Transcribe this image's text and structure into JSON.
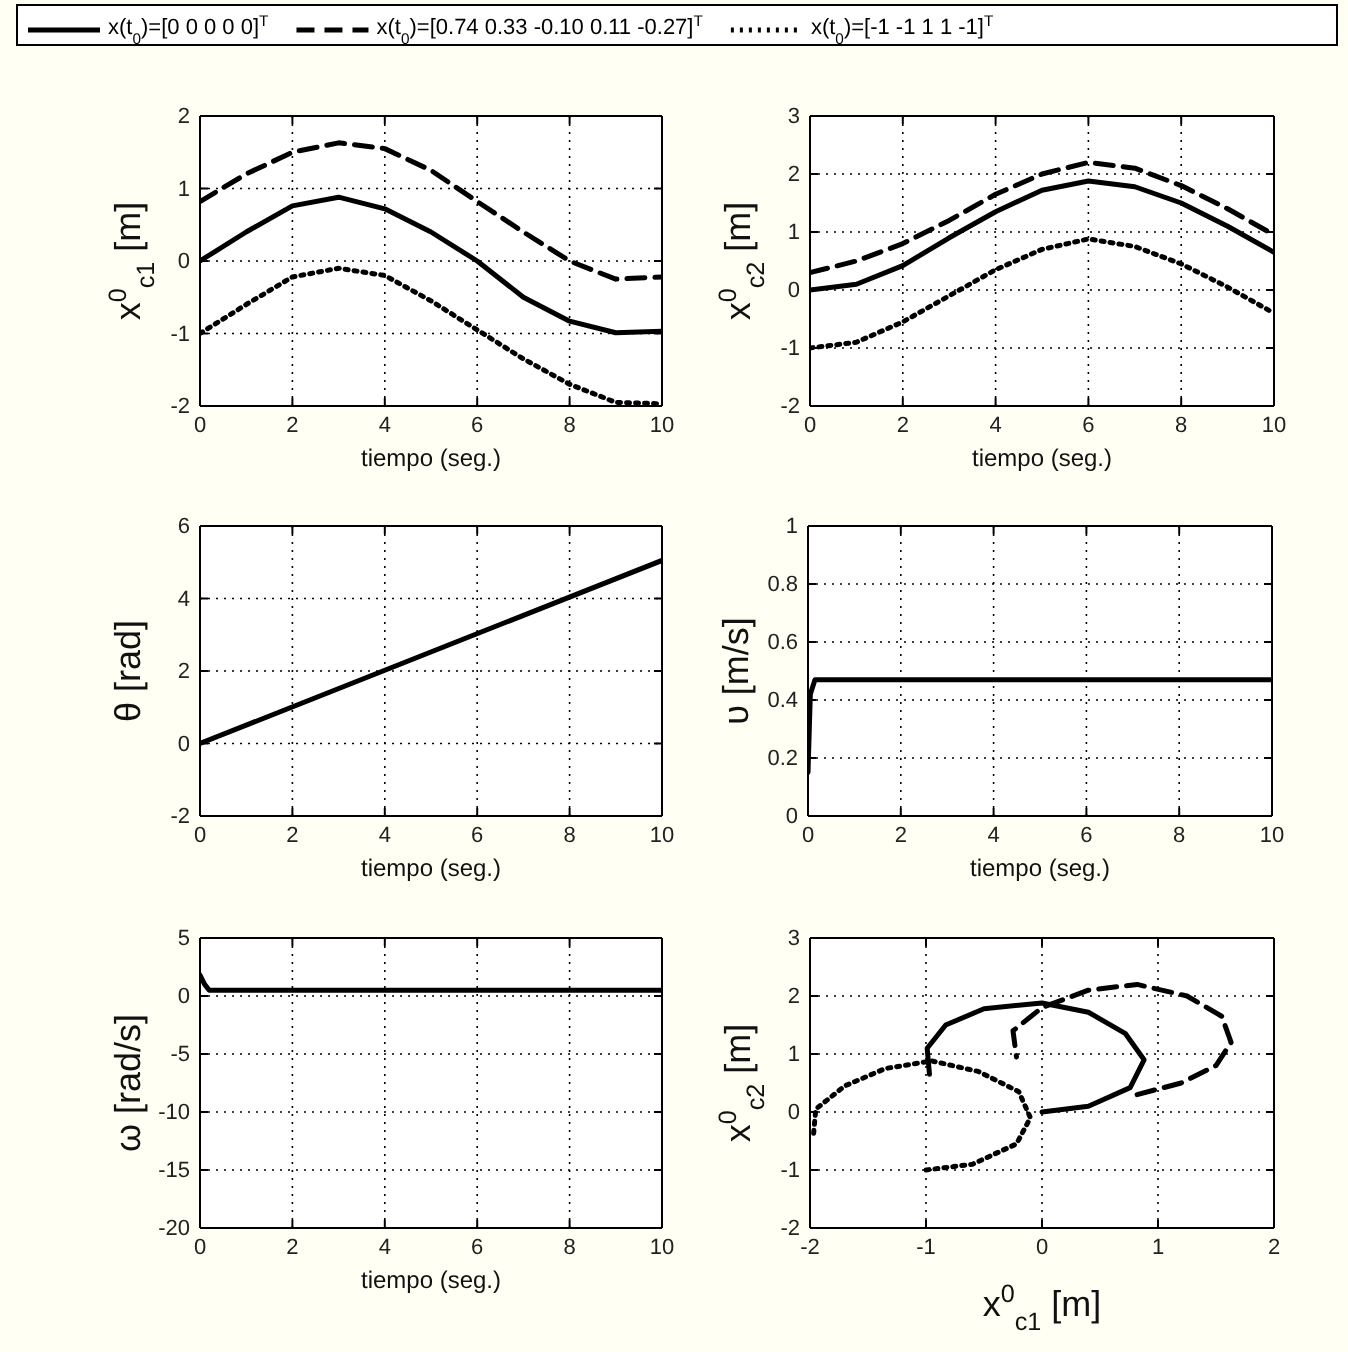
{
  "chart_data": [
    {
      "type": "line",
      "xlabel": "tiempo  (seg.)",
      "ylabel": "x$^{0}$$_{c1}$  [m]",
      "xlim": [
        0,
        10
      ],
      "ylim": [
        -2,
        2
      ],
      "xticks": [
        0,
        2,
        4,
        6,
        8,
        10
      ],
      "yticks": [
        -2,
        -1,
        0,
        1,
        2
      ],
      "grid": true,
      "legend": "top",
      "x": [
        0,
        1,
        2,
        3,
        4,
        5,
        6,
        7,
        8,
        9,
        10
      ],
      "series": [
        {
          "name": "x(t$_{0}$)=[0  0  0  0  0]$^{T}$",
          "color": "#000000",
          "line_style": "solid",
          "values": [
            0,
            0.4,
            0.76,
            0.88,
            0.72,
            0.4,
            0,
            -0.5,
            -0.83,
            -0.99,
            -0.97
          ]
        },
        {
          "name": "x(t$_{0}$)=[0.74  0.33  -0.10  0.11  -0.27]$^{T}$",
          "color": "#000000",
          "line_style": "dashed",
          "values": [
            0.82,
            1.2,
            1.5,
            1.63,
            1.55,
            1.25,
            0.82,
            0.4,
            0,
            -0.25,
            -0.22
          ]
        },
        {
          "name": "x(t$_{0}$)=[-1  -1  1  1  -1]$^{T}$",
          "color": "#000000",
          "line_style": "dotted",
          "values": [
            -1,
            -0.6,
            -0.22,
            -0.1,
            -0.2,
            -0.55,
            -0.95,
            -1.35,
            -1.7,
            -1.95,
            -1.97
          ]
        }
      ]
    },
    {
      "type": "line",
      "xlabel": "tiempo  (seg.)",
      "ylabel": "x$^{0}$$_{c2}$  [m]",
      "xlim": [
        0,
        10
      ],
      "ylim": [
        -2,
        3
      ],
      "xticks": [
        0,
        2,
        4,
        6,
        8,
        10
      ],
      "yticks": [
        -2,
        -1,
        0,
        1,
        2,
        3
      ],
      "grid": true,
      "x": [
        0,
        1,
        2,
        3,
        4,
        5,
        6,
        7,
        8,
        9,
        10
      ],
      "series": [
        {
          "color": "#000000",
          "line_style": "solid",
          "values": [
            0,
            0.1,
            0.42,
            0.9,
            1.35,
            1.72,
            1.88,
            1.78,
            1.5,
            1.1,
            0.65
          ]
        },
        {
          "color": "#000000",
          "line_style": "dashed",
          "values": [
            0.3,
            0.5,
            0.8,
            1.2,
            1.65,
            2,
            2.2,
            2.1,
            1.8,
            1.4,
            0.95
          ]
        },
        {
          "color": "#000000",
          "line_style": "dotted",
          "values": [
            -1,
            -0.9,
            -0.55,
            -0.1,
            0.35,
            0.7,
            0.88,
            0.75,
            0.45,
            0.05,
            -0.4
          ]
        }
      ]
    },
    {
      "type": "line",
      "xlabel": "tiempo  (seg.)",
      "ylabel": "θ  [rad]",
      "xlim": [
        0,
        10
      ],
      "ylim": [
        -2,
        6
      ],
      "xticks": [
        0,
        2,
        4,
        6,
        8,
        10
      ],
      "yticks": [
        -2,
        0,
        2,
        4,
        6
      ],
      "grid": true,
      "x": [
        0,
        10
      ],
      "series": [
        {
          "color": "#000000",
          "line_style": "solid",
          "values": [
            0,
            5.05
          ]
        }
      ]
    },
    {
      "type": "line",
      "xlabel": "tiempo  (seg.)",
      "ylabel": "υ  [m/s]",
      "xlim": [
        0,
        10
      ],
      "ylim": [
        0,
        1
      ],
      "xticks": [
        0,
        2,
        4,
        6,
        8,
        10
      ],
      "yticks": [
        0,
        0.2,
        0.4,
        0.6,
        0.8,
        1
      ],
      "grid": true,
      "x": [
        0,
        0.05,
        0.15,
        10
      ],
      "series": [
        {
          "color": "#000000",
          "line_style": "solid",
          "values": [
            0.15,
            0.42,
            0.47,
            0.47
          ]
        }
      ]
    },
    {
      "type": "line",
      "xlabel": "tiempo  (seg.)",
      "ylabel": "ω  [rad/s]",
      "xlim": [
        0,
        10
      ],
      "ylim": [
        -20,
        5
      ],
      "xticks": [
        0,
        2,
        4,
        6,
        8,
        10
      ],
      "yticks": [
        -20,
        -15,
        -10,
        -5,
        0,
        5
      ],
      "grid": true,
      "x": [
        0,
        0.1,
        0.2,
        10
      ],
      "series": [
        {
          "color": "#000000",
          "line_style": "solid",
          "values": [
            1.8,
            1,
            0.5,
            0.5
          ]
        }
      ]
    },
    {
      "type": "line",
      "xlabel": "x$^{0}$$_{c1}$  [m]",
      "ylabel": "x$^{0}$$_{c2}$  [m]",
      "xlim": [
        -2,
        2
      ],
      "ylim": [
        -2,
        3
      ],
      "xticks": [
        -2,
        -1,
        0,
        1,
        2
      ],
      "yticks": [
        -2,
        -1,
        0,
        1,
        2,
        3
      ],
      "grid": true,
      "series": [
        {
          "color": "#000000",
          "line_style": "solid",
          "x": [
            0,
            0.4,
            0.76,
            0.88,
            0.72,
            0.4,
            0,
            -0.5,
            -0.83,
            -0.99,
            -0.97
          ],
          "values": [
            0,
            0.1,
            0.42,
            0.9,
            1.35,
            1.72,
            1.88,
            1.78,
            1.5,
            1.1,
            0.65
          ]
        },
        {
          "color": "#000000",
          "line_style": "dashed",
          "x": [
            0.82,
            1.2,
            1.5,
            1.63,
            1.55,
            1.25,
            0.82,
            0.4,
            0,
            -0.25,
            -0.22
          ],
          "values": [
            0.3,
            0.5,
            0.8,
            1.2,
            1.65,
            2,
            2.2,
            2.1,
            1.8,
            1.4,
            0.95
          ]
        },
        {
          "color": "#000000",
          "line_style": "dotted",
          "x": [
            -1,
            -0.6,
            -0.22,
            -0.1,
            -0.2,
            -0.55,
            -0.95,
            -1.35,
            -1.7,
            -1.95,
            -1.97
          ],
          "values": [
            -1,
            -0.9,
            -0.55,
            -0.1,
            0.35,
            0.7,
            0.88,
            0.75,
            0.45,
            0.05,
            -0.4
          ]
        }
      ]
    }
  ]
}
